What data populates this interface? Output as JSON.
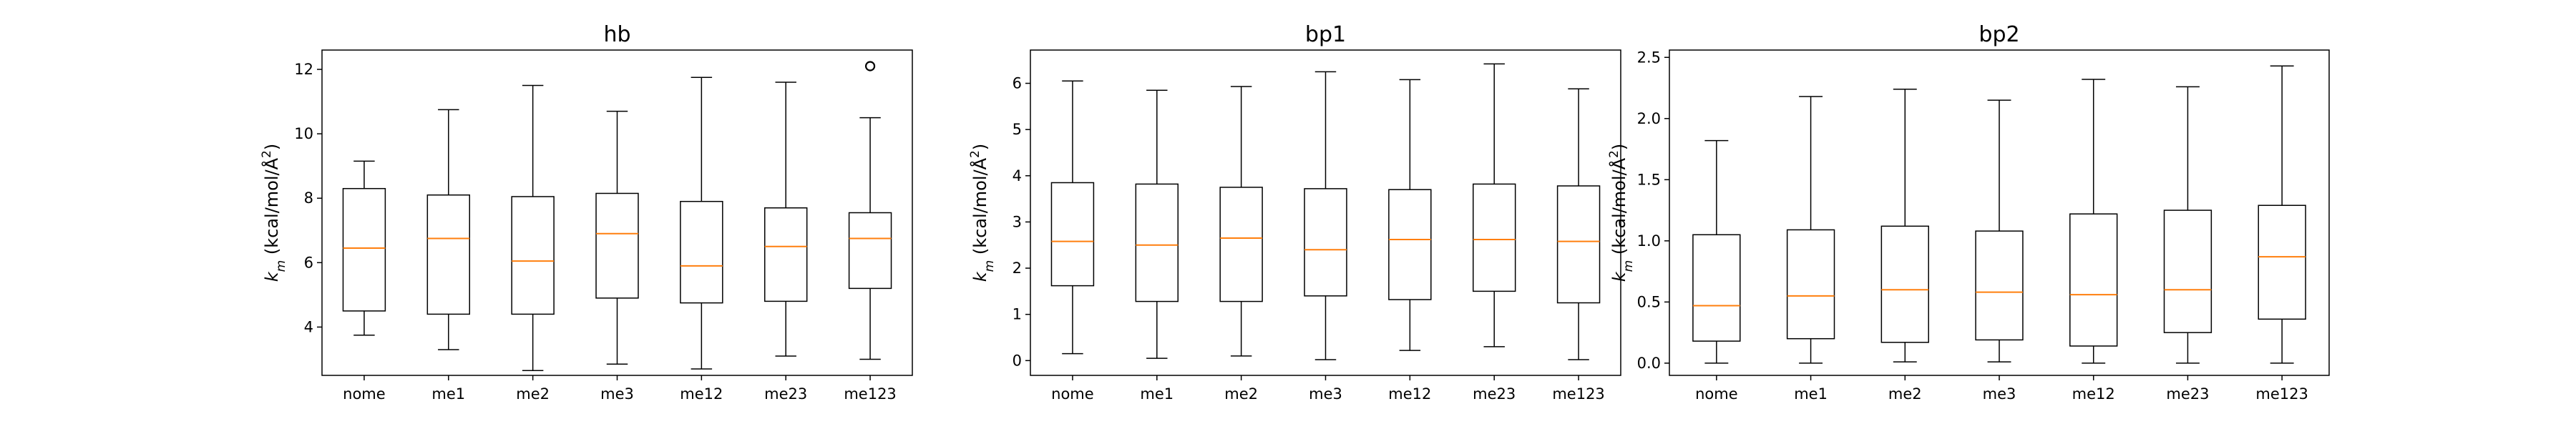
{
  "chart_data": [
    {
      "type": "box",
      "title": "hb",
      "ylabel": "k_m (kcal/mol/Å²)",
      "categories": [
        "nome",
        "me1",
        "me2",
        "me3",
        "me12",
        "me23",
        "me123"
      ],
      "ylim": [
        2.5,
        12.6
      ],
      "yticks": [
        4,
        6,
        8,
        10,
        12
      ],
      "boxes": [
        {
          "whislo": 3.75,
          "q1": 4.5,
          "med": 6.45,
          "q3": 8.3,
          "whishi": 9.15,
          "fliers": []
        },
        {
          "whislo": 3.3,
          "q1": 4.4,
          "med": 6.75,
          "q3": 8.1,
          "whishi": 10.75,
          "fliers": []
        },
        {
          "whislo": 2.65,
          "q1": 4.4,
          "med": 6.05,
          "q3": 8.05,
          "whishi": 11.5,
          "fliers": []
        },
        {
          "whislo": 2.85,
          "q1": 4.9,
          "med": 6.9,
          "q3": 8.15,
          "whishi": 10.7,
          "fliers": []
        },
        {
          "whislo": 2.7,
          "q1": 4.75,
          "med": 5.9,
          "q3": 7.9,
          "whishi": 11.75,
          "fliers": []
        },
        {
          "whislo": 3.1,
          "q1": 4.8,
          "med": 6.5,
          "q3": 7.7,
          "whishi": 11.6,
          "fliers": []
        },
        {
          "whislo": 3.0,
          "q1": 5.2,
          "med": 6.75,
          "q3": 7.55,
          "whishi": 10.5,
          "fliers": [
            12.1
          ]
        }
      ]
    },
    {
      "type": "box",
      "title": "bp1",
      "ylabel": "k_m (kcal/mol/Å²)",
      "categories": [
        "nome",
        "me1",
        "me2",
        "me3",
        "me12",
        "me23",
        "me123"
      ],
      "ylim": [
        -0.32,
        6.72
      ],
      "yticks": [
        0,
        1,
        2,
        3,
        4,
        5,
        6
      ],
      "boxes": [
        {
          "whislo": 0.15,
          "q1": 1.62,
          "med": 2.58,
          "q3": 3.85,
          "whishi": 6.05,
          "fliers": []
        },
        {
          "whislo": 0.05,
          "q1": 1.28,
          "med": 2.5,
          "q3": 3.82,
          "whishi": 5.85,
          "fliers": []
        },
        {
          "whislo": 0.1,
          "q1": 1.28,
          "med": 2.65,
          "q3": 3.75,
          "whishi": 5.93,
          "fliers": []
        },
        {
          "whislo": 0.02,
          "q1": 1.4,
          "med": 2.4,
          "q3": 3.72,
          "whishi": 6.25,
          "fliers": []
        },
        {
          "whislo": 0.22,
          "q1": 1.32,
          "med": 2.62,
          "q3": 3.7,
          "whishi": 6.08,
          "fliers": []
        },
        {
          "whislo": 0.3,
          "q1": 1.5,
          "med": 2.62,
          "q3": 3.82,
          "whishi": 6.42,
          "fliers": []
        },
        {
          "whislo": 0.02,
          "q1": 1.25,
          "med": 2.58,
          "q3": 3.78,
          "whishi": 5.88,
          "fliers": []
        }
      ]
    },
    {
      "type": "box",
      "title": "bp2",
      "ylabel": "k_m (kcal/mol/Å²)",
      "categories": [
        "nome",
        "me1",
        "me2",
        "me3",
        "me12",
        "me23",
        "me123"
      ],
      "ylim": [
        -0.1,
        2.56
      ],
      "yticks": [
        0.0,
        0.5,
        1.0,
        1.5,
        2.0,
        2.5
      ],
      "ytick_labels": [
        "0.0",
        "0.5",
        "1.0",
        "1.5",
        "2.0",
        "2.5"
      ],
      "boxes": [
        {
          "whislo": 0.0,
          "q1": 0.18,
          "med": 0.47,
          "q3": 1.05,
          "whishi": 1.82,
          "fliers": []
        },
        {
          "whislo": 0.0,
          "q1": 0.2,
          "med": 0.55,
          "q3": 1.09,
          "whishi": 2.18,
          "fliers": []
        },
        {
          "whislo": 0.01,
          "q1": 0.17,
          "med": 0.6,
          "q3": 1.12,
          "whishi": 2.24,
          "fliers": []
        },
        {
          "whislo": 0.01,
          "q1": 0.19,
          "med": 0.58,
          "q3": 1.08,
          "whishi": 2.15,
          "fliers": []
        },
        {
          "whislo": 0.0,
          "q1": 0.14,
          "med": 0.56,
          "q3": 1.22,
          "whishi": 2.32,
          "fliers": []
        },
        {
          "whislo": 0.0,
          "q1": 0.25,
          "med": 0.6,
          "q3": 1.25,
          "whishi": 2.26,
          "fliers": []
        },
        {
          "whislo": 0.0,
          "q1": 0.36,
          "med": 0.87,
          "q3": 1.29,
          "whishi": 2.43,
          "fliers": []
        }
      ]
    }
  ],
  "style": {
    "median_color": "#ff7f0e",
    "box_color": "#000000",
    "background": "#ffffff"
  }
}
